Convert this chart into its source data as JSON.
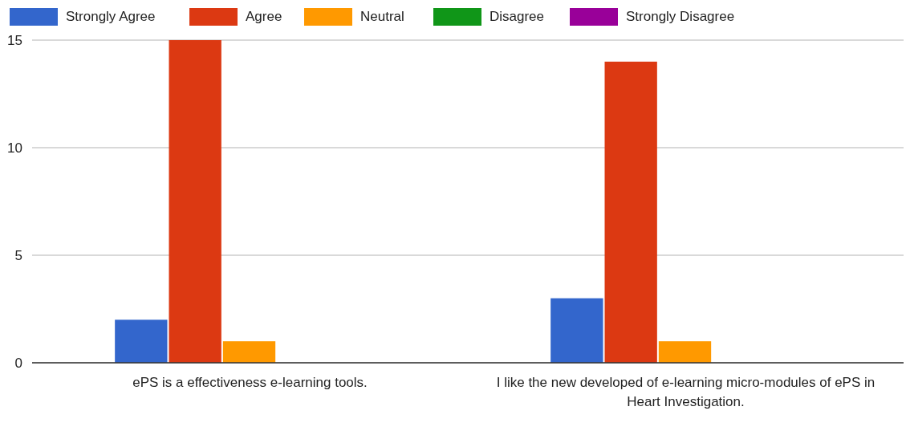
{
  "chart_data": {
    "type": "bar",
    "categories": [
      "ePS is a effectiveness e-learning tools.",
      "I like the new developed of e-learning micro-modules of ePS in Heart Investigation."
    ],
    "series": [
      {
        "name": "Strongly Agree",
        "color": "#3366cc",
        "values": [
          2,
          3
        ]
      },
      {
        "name": "Agree",
        "color": "#dc3912",
        "values": [
          15,
          14
        ]
      },
      {
        "name": "Neutral",
        "color": "#ff9900",
        "values": [
          1,
          1
        ]
      },
      {
        "name": "Disagree",
        "color": "#109618",
        "values": [
          0,
          0
        ]
      },
      {
        "name": "Strongly Disagree",
        "color": "#990099",
        "values": [
          0,
          0
        ]
      }
    ],
    "ylim": [
      0,
      15
    ],
    "yticks": [
      0,
      5,
      10,
      15
    ],
    "grid": "y",
    "legend": "top left"
  }
}
